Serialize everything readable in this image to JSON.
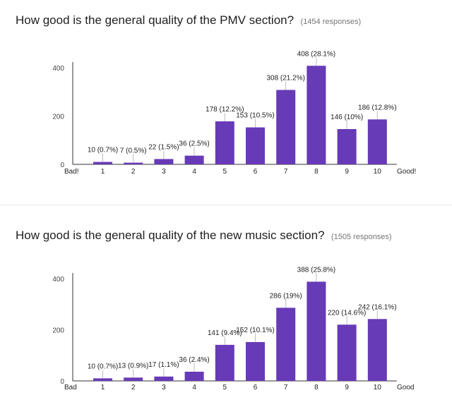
{
  "chart_data": [
    {
      "type": "bar",
      "title": "How good is the general quality of the PMV section?",
      "responses": "(1454 responses)",
      "xlabel": "",
      "ylabel": "",
      "ylim": [
        0,
        400
      ],
      "y_ticks": [
        0,
        200,
        400
      ],
      "x_end_labels": [
        "Bad!",
        "Good!"
      ],
      "categories": [
        "1",
        "2",
        "3",
        "4",
        "5",
        "6",
        "7",
        "8",
        "9",
        "10"
      ],
      "values": [
        10,
        7,
        22,
        36,
        178,
        153,
        308,
        408,
        146,
        186
      ],
      "data_labels": [
        "10 (0.7%)",
        "7 (0.5%)",
        "22 (1.5%)",
        "36 (2.5%)",
        "178 (12.2%)",
        "153 (10.5%)",
        "308 (21.2%)",
        "408 (28.1%)",
        "146 (10%)",
        "186 (12.8%)"
      ],
      "bar_color": "#673ab7",
      "grid": false
    },
    {
      "type": "bar",
      "title": "How good is the general quality of the new music section?",
      "responses": "(1505 responses)",
      "xlabel": "",
      "ylabel": "",
      "ylim": [
        0,
        400
      ],
      "y_ticks": [
        0,
        200,
        400
      ],
      "x_end_labels": [
        "Bad",
        "Good"
      ],
      "categories": [
        "1",
        "2",
        "3",
        "4",
        "5",
        "6",
        "7",
        "8",
        "9",
        "10"
      ],
      "values": [
        10,
        13,
        17,
        36,
        141,
        152,
        286,
        388,
        220,
        242
      ],
      "data_labels": [
        "10 (0.7%)",
        "13 (0.9%)",
        "17 (1.1%)",
        "36 (2.4%)",
        "141 (9.4%)",
        "152 (10.1%)",
        "286 (19%)",
        "388 (25.8%)",
        "220 (14.6%)",
        "242 (16.1%)"
      ],
      "bar_color": "#673ab7",
      "grid": false
    }
  ]
}
